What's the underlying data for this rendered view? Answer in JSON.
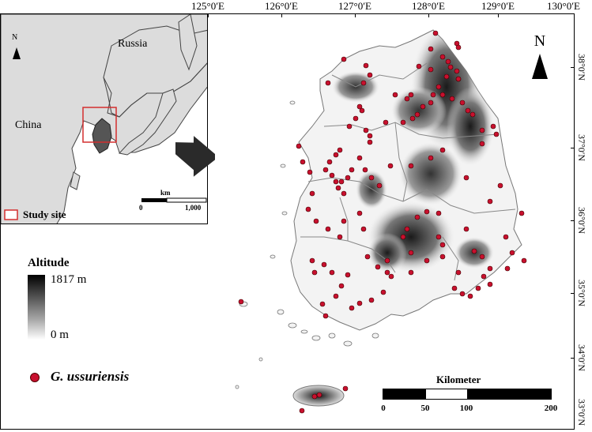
{
  "longitude_labels": [
    "125°0′E",
    "126°0′E",
    "127°0′E",
    "128°0′E",
    "129°0′E",
    "130°0′E"
  ],
  "latitude_labels": [
    "38°0′N",
    "37°0′N",
    "36°0′N",
    "35°0′N",
    "34°0′N",
    "33°0′N"
  ],
  "inset": {
    "north": "N",
    "country_russia": "Russia",
    "country_china": "China",
    "scale_unit": "km",
    "scale_min": "0",
    "scale_max": "1,000",
    "legend_label": "Study site"
  },
  "legend": {
    "title": "Altitude",
    "max_label": "1817 m",
    "min_label": "0 m",
    "species_label": "G. ussuriensis"
  },
  "north_arrow": "N",
  "scale_bar": {
    "title": "Kilometer",
    "ticks": [
      "0",
      "50",
      "100",
      "200"
    ]
  },
  "colors": {
    "occurrence": "#c8102e",
    "study_site_box": "#d32f2f",
    "terrain_high": "#000000",
    "terrain_low": "#ffffff"
  }
}
